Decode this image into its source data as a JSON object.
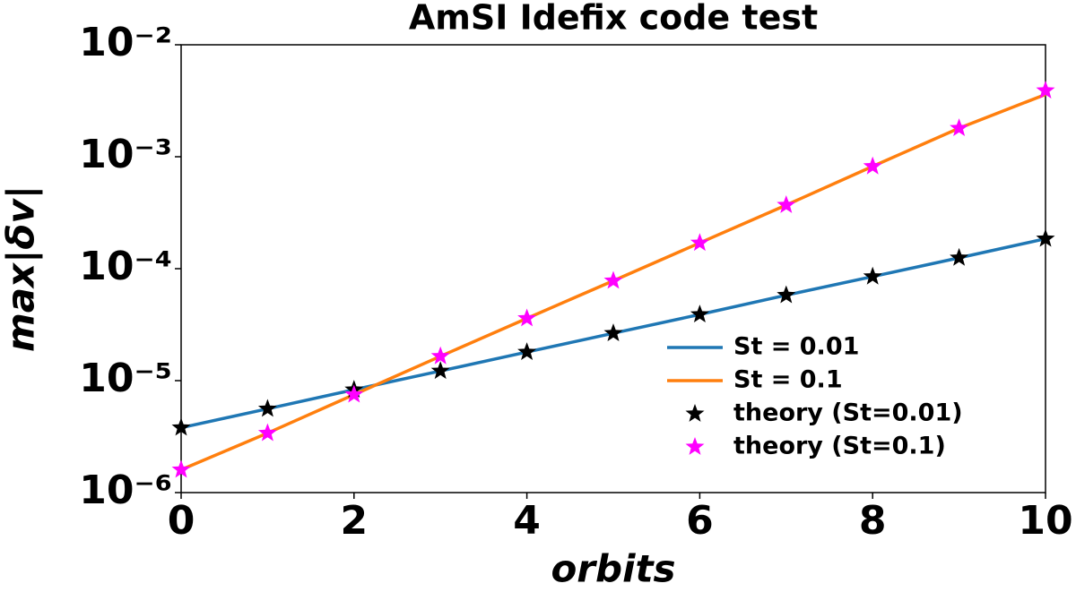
{
  "chart_data": {
    "type": "line",
    "title": "AmSI Idefix code test",
    "x_label": "orbits",
    "y_label": "max|δv|",
    "x": [
      0,
      1,
      2,
      3,
      4,
      5,
      6,
      7,
      8,
      9,
      10
    ],
    "series": [
      {
        "name": "St = 0.01",
        "color": "#1f77b4",
        "style": "line",
        "values": [
          3.8e-06,
          5.6e-06,
          8.3e-06,
          1.22e-05,
          1.8e-05,
          2.65e-05,
          3.9e-05,
          5.8e-05,
          8.5e-05,
          0.000125,
          0.000185
        ]
      },
      {
        "name": "St = 0.1",
        "color": "#ff7f0e",
        "style": "line",
        "values": [
          1.6e-06,
          3.4e-06,
          7.5e-06,
          1.65e-05,
          3.6e-05,
          7.8e-05,
          0.00017,
          0.00037,
          0.00082,
          0.0018,
          0.0036
        ]
      },
      {
        "name": "theory (St=0.01)",
        "color": "#000000",
        "style": "star",
        "values": [
          3.8e-06,
          5.6e-06,
          8.3e-06,
          1.22e-05,
          1.8e-05,
          2.65e-05,
          3.9e-05,
          5.8e-05,
          8.5e-05,
          0.000125,
          0.000185
        ]
      },
      {
        "name": "theory (St=0.1)",
        "color": "#ff00ff",
        "style": "star",
        "values": [
          1.6e-06,
          3.4e-06,
          7.5e-06,
          1.65e-05,
          3.6e-05,
          7.8e-05,
          0.00017,
          0.00037,
          0.00082,
          0.0018,
          0.0039
        ]
      }
    ],
    "xlim": [
      0,
      10
    ],
    "xticks": [
      0,
      2,
      4,
      6,
      8,
      10
    ],
    "yscale": "log",
    "ylim": [
      1e-06,
      0.01
    ],
    "yticks": [
      {
        "value": 1e-06,
        "label": "10⁻⁶"
      },
      {
        "value": 1e-05,
        "label": "10⁻⁵"
      },
      {
        "value": 0.0001,
        "label": "10⁻⁴"
      },
      {
        "value": 0.001,
        "label": "10⁻³"
      },
      {
        "value": 0.01,
        "label": "10⁻²"
      }
    ],
    "grid": false,
    "legend": "lower right"
  }
}
